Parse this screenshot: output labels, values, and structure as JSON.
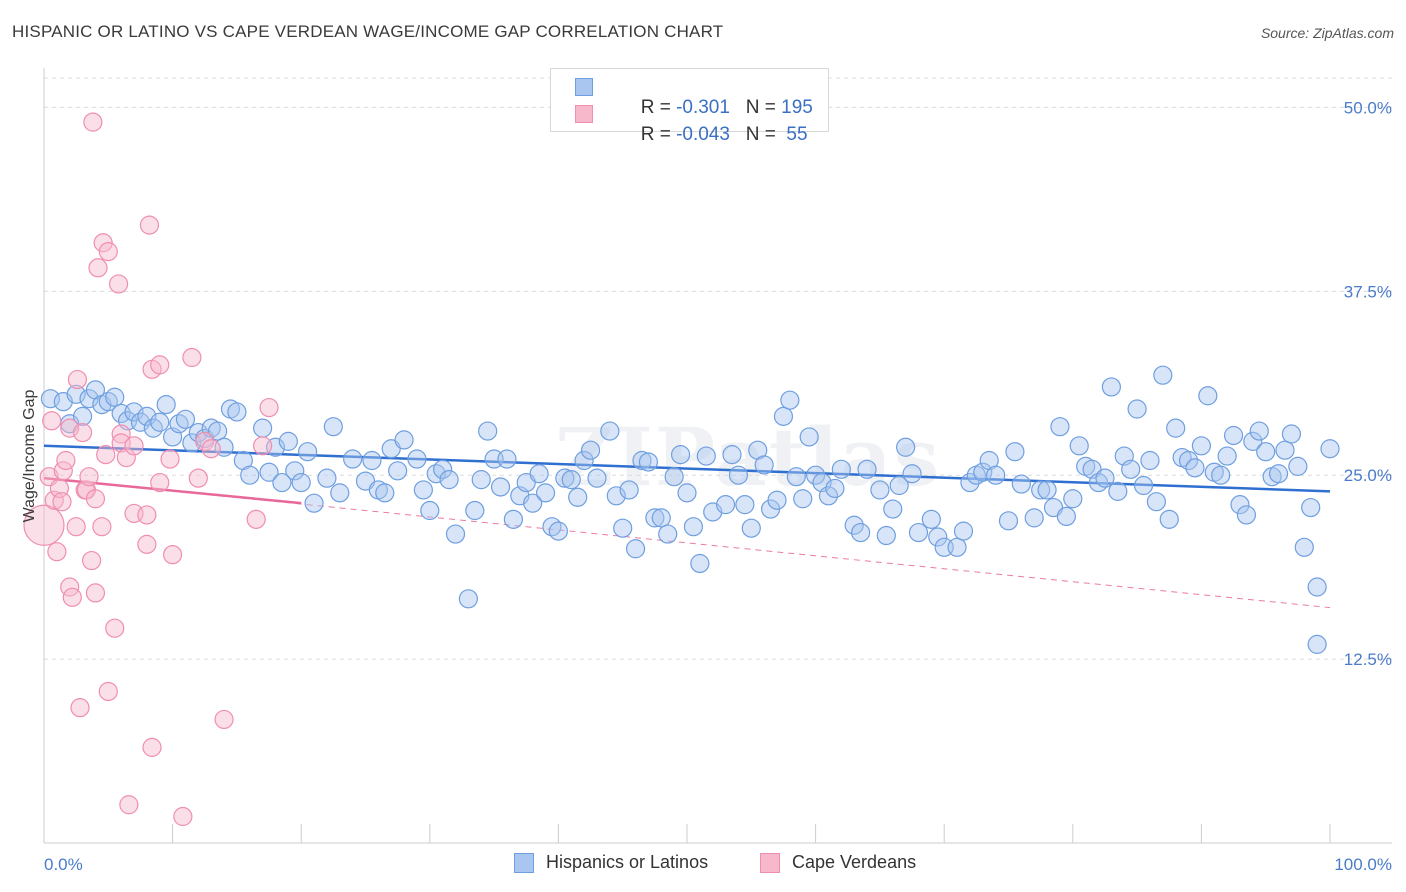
{
  "title": "HISPANIC OR LATINO VS CAPE VERDEAN WAGE/INCOME GAP CORRELATION CHART",
  "source": "Source: ZipAtlas.com",
  "watermark": "ZIPatlas",
  "legend": {
    "rows": [
      {
        "r_label": "R = ",
        "r_value": "-0.301",
        "n_label": "N = ",
        "n_value": "195",
        "color": "#a9c6f0"
      },
      {
        "r_label": "R = ",
        "r_value": "-0.043",
        "n_label": "N = ",
        "n_value": " 55",
        "color": "#f7b8cb"
      }
    ]
  },
  "bottom_legend": [
    {
      "label": "Hispanics or Latinos",
      "color": "#a9c6f0"
    },
    {
      "label": "Cape Verdeans",
      "color": "#f7b8cb"
    }
  ],
  "chart_data": {
    "type": "scatter",
    "title": "HISPANIC OR LATINO VS CAPE VERDEAN WAGE/INCOME GAP CORRELATION CHART",
    "ylabel": "Wage/Income Gap",
    "xlabel": "",
    "xlim": [
      0,
      100
    ],
    "ylim": [
      0,
      52
    ],
    "x_tick_labels": [
      "0.0%",
      "100.0%"
    ],
    "y_ticks": [
      12.5,
      25.0,
      37.5,
      50.0
    ],
    "y_tick_labels": [
      "12.5%",
      "25.0%",
      "37.5%",
      "50.0%"
    ],
    "grid": "horizontal dashed",
    "legend_position": "top-center",
    "series": [
      {
        "name": "Hispanics or Latinos",
        "color": "#6f9fe0",
        "fill": "#a9c6f0",
        "r": -0.301,
        "n": 195,
        "trend": {
          "x0": 0,
          "y0": 27.0,
          "x1": 100,
          "y1": 23.9
        },
        "points": [
          [
            0.5,
            30.2
          ],
          [
            1.5,
            30.0
          ],
          [
            2,
            28.5
          ],
          [
            2.5,
            30.5
          ],
          [
            3,
            29.0
          ],
          [
            3.5,
            30.2
          ],
          [
            4,
            30.8
          ],
          [
            4.5,
            29.8
          ],
          [
            5,
            30.0
          ],
          [
            5.5,
            30.3
          ],
          [
            6,
            29.2
          ],
          [
            6.5,
            28.7
          ],
          [
            7,
            29.3
          ],
          [
            7.5,
            28.6
          ],
          [
            8,
            29.0
          ],
          [
            8.5,
            28.2
          ],
          [
            9,
            28.6
          ],
          [
            9.5,
            29.8
          ],
          [
            10,
            27.6
          ],
          [
            10.5,
            28.5
          ],
          [
            11,
            28.8
          ],
          [
            11.5,
            27.2
          ],
          [
            12,
            27.9
          ],
          [
            12.5,
            27.5
          ],
          [
            13,
            28.2
          ],
          [
            13.5,
            28.0
          ],
          [
            14,
            26.9
          ],
          [
            14.5,
            29.5
          ],
          [
            15,
            29.3
          ],
          [
            15.5,
            26.0
          ],
          [
            16,
            25.0
          ],
          [
            17,
            28.2
          ],
          [
            17.5,
            25.2
          ],
          [
            18,
            26.9
          ],
          [
            18.5,
            24.5
          ],
          [
            19,
            27.3
          ],
          [
            19.5,
            25.3
          ],
          [
            20,
            24.5
          ],
          [
            20.5,
            26.6
          ],
          [
            21,
            23.1
          ],
          [
            22,
            24.8
          ],
          [
            22.5,
            28.3
          ],
          [
            23,
            23.8
          ],
          [
            24,
            26.1
          ],
          [
            25,
            24.6
          ],
          [
            25.5,
            26.0
          ],
          [
            26,
            24.0
          ],
          [
            26.5,
            23.8
          ],
          [
            27,
            26.8
          ],
          [
            27.5,
            25.3
          ],
          [
            28,
            27.4
          ],
          [
            29,
            26.1
          ],
          [
            29.5,
            24.0
          ],
          [
            30,
            22.6
          ],
          [
            30.5,
            25.1
          ],
          [
            31,
            25.4
          ],
          [
            31.5,
            24.7
          ],
          [
            32,
            21.0
          ],
          [
            33,
            16.6
          ],
          [
            33.5,
            22.6
          ],
          [
            34,
            24.7
          ],
          [
            34.5,
            28.0
          ],
          [
            35,
            26.1
          ],
          [
            35.5,
            24.2
          ],
          [
            36,
            26.1
          ],
          [
            36.5,
            22.0
          ],
          [
            37,
            23.6
          ],
          [
            37.5,
            24.5
          ],
          [
            38,
            23.1
          ],
          [
            38.5,
            25.1
          ],
          [
            39,
            23.8
          ],
          [
            39.5,
            21.5
          ],
          [
            40,
            21.2
          ],
          [
            40.5,
            24.8
          ],
          [
            41,
            24.7
          ],
          [
            41.5,
            23.5
          ],
          [
            42,
            26.0
          ],
          [
            42.5,
            26.7
          ],
          [
            43,
            24.8
          ],
          [
            44,
            28.0
          ],
          [
            44.5,
            23.6
          ],
          [
            45,
            21.4
          ],
          [
            45.5,
            24.0
          ],
          [
            46,
            20.0
          ],
          [
            46.5,
            26.0
          ],
          [
            47,
            25.9
          ],
          [
            47.5,
            22.1
          ],
          [
            48,
            22.1
          ],
          [
            48.5,
            21.0
          ],
          [
            49,
            24.9
          ],
          [
            49.5,
            26.4
          ],
          [
            50,
            23.8
          ],
          [
            50.5,
            21.5
          ],
          [
            51,
            19.0
          ],
          [
            51.5,
            26.3
          ],
          [
            52,
            22.5
          ],
          [
            53,
            23.0
          ],
          [
            53.5,
            26.4
          ],
          [
            54,
            25.0
          ],
          [
            54.5,
            23.0
          ],
          [
            55,
            21.4
          ],
          [
            55.5,
            26.7
          ],
          [
            56,
            25.7
          ],
          [
            56.5,
            22.7
          ],
          [
            57,
            23.3
          ],
          [
            57.5,
            29.0
          ],
          [
            58,
            30.1
          ],
          [
            58.5,
            24.9
          ],
          [
            59,
            23.4
          ],
          [
            59.5,
            27.6
          ],
          [
            60,
            25.0
          ],
          [
            60.5,
            24.5
          ],
          [
            61,
            23.6
          ],
          [
            61.5,
            24.1
          ],
          [
            62,
            25.4
          ],
          [
            63,
            21.6
          ],
          [
            63.5,
            21.1
          ],
          [
            64,
            25.4
          ],
          [
            65,
            24.0
          ],
          [
            65.5,
            20.9
          ],
          [
            66,
            22.7
          ],
          [
            66.5,
            24.3
          ],
          [
            67,
            26.9
          ],
          [
            67.5,
            25.1
          ],
          [
            68,
            21.1
          ],
          [
            69,
            22.0
          ],
          [
            69.5,
            20.8
          ],
          [
            70,
            20.1
          ],
          [
            71,
            20.1
          ],
          [
            71.5,
            21.2
          ],
          [
            72,
            24.5
          ],
          [
            72.5,
            25.0
          ],
          [
            73,
            25.2
          ],
          [
            73.5,
            26.0
          ],
          [
            74,
            25.0
          ],
          [
            75,
            21.9
          ],
          [
            75.5,
            26.6
          ],
          [
            76,
            24.4
          ],
          [
            77,
            22.1
          ],
          [
            77.5,
            24.0
          ],
          [
            78,
            24.0
          ],
          [
            78.5,
            22.8
          ],
          [
            79,
            28.3
          ],
          [
            79.5,
            22.2
          ],
          [
            80,
            23.4
          ],
          [
            80.5,
            27.0
          ],
          [
            81,
            25.6
          ],
          [
            81.5,
            25.4
          ],
          [
            82,
            24.5
          ],
          [
            82.5,
            24.8
          ],
          [
            83,
            31.0
          ],
          [
            83.5,
            23.9
          ],
          [
            84,
            26.3
          ],
          [
            84.5,
            25.4
          ],
          [
            85,
            29.5
          ],
          [
            85.5,
            24.3
          ],
          [
            86,
            26.0
          ],
          [
            86.5,
            23.2
          ],
          [
            87,
            31.8
          ],
          [
            87.5,
            22.0
          ],
          [
            88,
            28.2
          ],
          [
            88.5,
            26.2
          ],
          [
            89,
            26.0
          ],
          [
            89.5,
            25.5
          ],
          [
            90,
            27.0
          ],
          [
            90.5,
            30.4
          ],
          [
            91,
            25.2
          ],
          [
            91.5,
            25.0
          ],
          [
            92,
            26.3
          ],
          [
            92.5,
            27.7
          ],
          [
            93,
            23.0
          ],
          [
            93.5,
            22.3
          ],
          [
            94,
            27.3
          ],
          [
            94.5,
            28.0
          ],
          [
            95,
            26.6
          ],
          [
            95.5,
            24.9
          ],
          [
            96,
            25.1
          ],
          [
            96.5,
            26.7
          ],
          [
            97,
            27.8
          ],
          [
            97.5,
            25.6
          ],
          [
            98,
            20.1
          ],
          [
            98.5,
            22.8
          ],
          [
            99,
            17.4
          ],
          [
            99,
            13.5
          ],
          [
            100,
            26.8
          ]
        ]
      },
      {
        "name": "Cape Verdeans",
        "color": "#f08eb0",
        "fill": "#f7b8cb",
        "r": -0.043,
        "n": 55,
        "trend": {
          "x0": 0,
          "y0": 24.8,
          "x1": 20,
          "y1": 23.1
        },
        "trend_dashed": {
          "x0": 0,
          "y0": 24.8,
          "x1": 100,
          "y1": 16.0
        },
        "points": [
          [
            0,
            21.6
          ],
          [
            0.4,
            24.9
          ],
          [
            0.6,
            28.7
          ],
          [
            0.8,
            23.3
          ],
          [
            1,
            19.8
          ],
          [
            1.2,
            24.1
          ],
          [
            1.4,
            23.2
          ],
          [
            1.5,
            25.3
          ],
          [
            1.7,
            26.0
          ],
          [
            2,
            28.2
          ],
          [
            2,
            17.4
          ],
          [
            2.2,
            16.7
          ],
          [
            2.5,
            21.5
          ],
          [
            2.6,
            31.5
          ],
          [
            2.8,
            9.2
          ],
          [
            3,
            27.9
          ],
          [
            3.2,
            24.0
          ],
          [
            3.3,
            24.0
          ],
          [
            3.5,
            24.9
          ],
          [
            3.7,
            19.2
          ],
          [
            3.8,
            49.0
          ],
          [
            4,
            23.4
          ],
          [
            4,
            17.0
          ],
          [
            4.2,
            39.1
          ],
          [
            4.5,
            21.5
          ],
          [
            4.6,
            40.8
          ],
          [
            4.8,
            26.4
          ],
          [
            5,
            40.2
          ],
          [
            5,
            10.3
          ],
          [
            5.5,
            14.6
          ],
          [
            5.8,
            38.0
          ],
          [
            6,
            27.8
          ],
          [
            6,
            27.2
          ],
          [
            6.4,
            26.2
          ],
          [
            6.6,
            2.6
          ],
          [
            7,
            27.0
          ],
          [
            7,
            22.4
          ],
          [
            8,
            22.3
          ],
          [
            8,
            20.3
          ],
          [
            8.2,
            42.0
          ],
          [
            8.4,
            32.2
          ],
          [
            8.4,
            6.5
          ],
          [
            9,
            24.5
          ],
          [
            9,
            32.5
          ],
          [
            9.8,
            26.1
          ],
          [
            10,
            19.6
          ],
          [
            10.8,
            1.8
          ],
          [
            11.5,
            33.0
          ],
          [
            12,
            24.8
          ],
          [
            12.5,
            27.3
          ],
          [
            13,
            26.8
          ],
          [
            14,
            8.4
          ],
          [
            16.5,
            22.0
          ],
          [
            17,
            27.0
          ],
          [
            17.5,
            29.6
          ]
        ]
      }
    ]
  }
}
